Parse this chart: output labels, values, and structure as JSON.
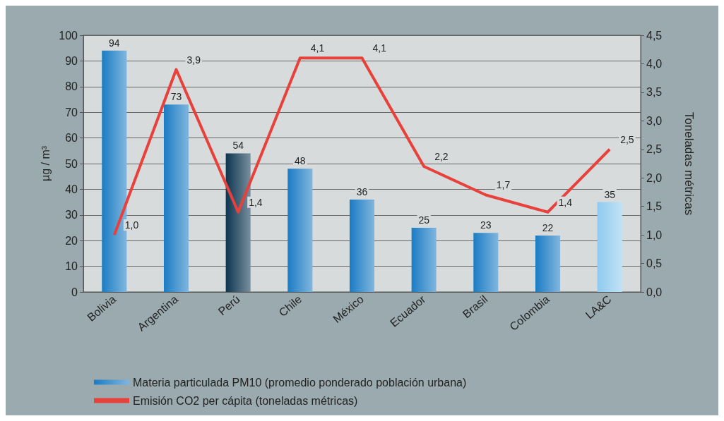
{
  "chart_data": {
    "type": "bar",
    "categories": [
      "Bolivia",
      "Argentina",
      "Perú",
      "Chile",
      "México",
      "Ecuador",
      "Brasil",
      "Colombia",
      "LA&C"
    ],
    "ylabel": "µg / m³",
    "y2label": "Toneladas métricas",
    "ylim": [
      0,
      100
    ],
    "yticks": [
      0,
      10,
      20,
      30,
      40,
      50,
      60,
      70,
      80,
      90,
      100
    ],
    "y2lim": [
      0,
      4.5
    ],
    "y2ticks": [
      {
        "value": 0,
        "label": "0,0"
      },
      {
        "value": 0.5,
        "label": "0,5"
      },
      {
        "value": 1,
        "label": "1,0"
      },
      {
        "value": 1.5,
        "label": "1,5"
      },
      {
        "value": 2,
        "label": "2,0"
      },
      {
        "value": 2.5,
        "label": "2,5"
      },
      {
        "value": 3,
        "label": "3,0"
      },
      {
        "value": 3.5,
        "label": "3,5"
      },
      {
        "value": 4,
        "label": "4,0"
      },
      {
        "value": 4.5,
        "label": "4,5"
      }
    ],
    "grid": "y",
    "legend": "bottom",
    "data_labels": true,
    "series": [
      {
        "name": "Materia particulada PM10 (promedio ponderado población urbana)",
        "color": "#1a7cc4",
        "colors": [
          "#1a7cc4",
          "#1a7cc4",
          "#0c3550",
          "#1a7cc4",
          "#1a7cc4",
          "#1a7cc4",
          "#1a7cc4",
          "#1a7cc4",
          "#8fcbef"
        ],
        "values": [
          94,
          73,
          54,
          48,
          36,
          25,
          23,
          22,
          35
        ]
      },
      {
        "name": "Emisión CO2 per cápita (toneladas métricas)",
        "type": "line",
        "axis": "y2",
        "color": "#e8403a",
        "values": [
          1.0,
          3.9,
          1.4,
          4.1,
          4.1,
          2.2,
          1.7,
          1.4,
          2.5
        ],
        "value_labels": [
          "1,0",
          "3,9",
          "1,4",
          "4,1",
          "4,1",
          "2,2",
          "1,7",
          "1,4",
          "2,5"
        ]
      }
    ]
  }
}
